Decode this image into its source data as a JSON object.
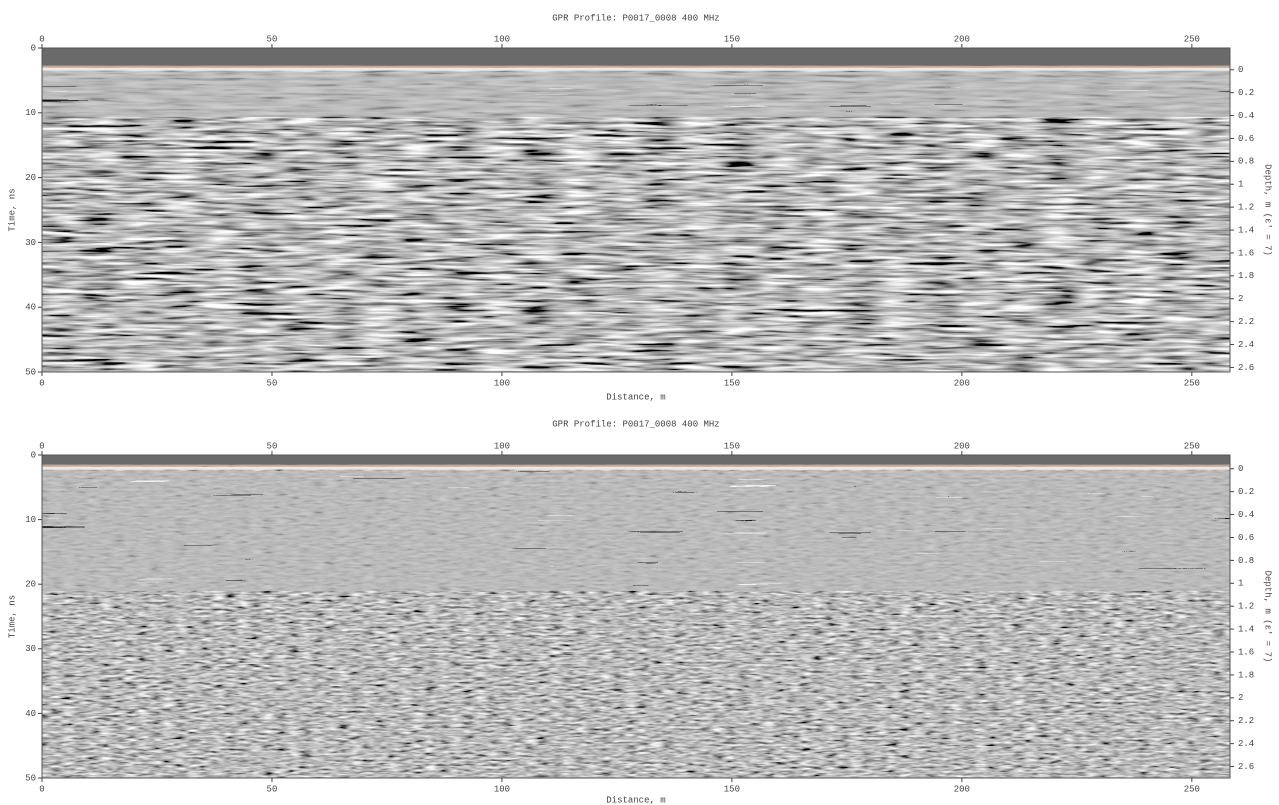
{
  "chart_data": [
    {
      "type": "radargram",
      "title": "GPR Profile: P0017_0008 400 MHz",
      "xlabel": "Distance, m",
      "ylabel": "Time, ns",
      "y2label": "Depth, m (ε' = 7)",
      "xlim": [
        0,
        258.3
      ],
      "xticks": [
        0,
        50,
        100,
        150,
        200,
        250
      ],
      "ylim": [
        0,
        50
      ],
      "yticks": [
        0,
        10,
        20,
        30,
        40,
        50
      ],
      "y2lim": [
        -0.19,
        2.64
      ],
      "y2ticks": [
        0,
        0.2,
        0.4,
        0.6,
        0.8,
        1,
        1.2,
        1.4,
        1.6,
        1.8,
        2,
        2.2,
        2.4,
        2.6
      ]
    },
    {
      "type": "radargram",
      "title": "GPR Profile: P0017_0008 400 MHz",
      "xlabel": "Distance, m",
      "ylabel": "Time, ns",
      "y2label": "Depth, m (ε' = 7)",
      "xlim": [
        0,
        258.3
      ],
      "xticks": [
        0,
        50,
        100,
        150,
        200,
        250
      ],
      "ylim": [
        0,
        50
      ],
      "yticks": [
        0,
        10,
        20,
        30,
        40,
        50
      ],
      "y2lim": [
        -0.12,
        2.7
      ],
      "y2ticks": [
        0,
        0.2,
        0.4,
        0.6,
        0.8,
        1,
        1.2,
        1.4,
        1.6,
        1.8,
        2,
        2.2,
        2.4,
        2.6
      ]
    }
  ]
}
